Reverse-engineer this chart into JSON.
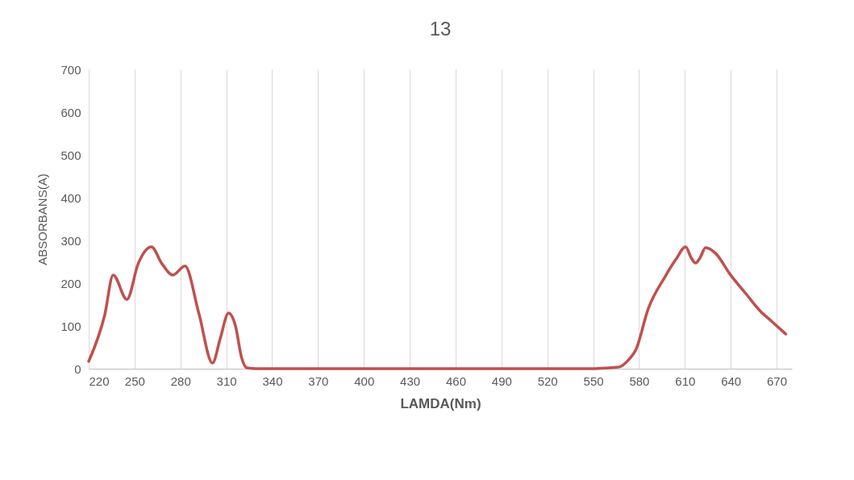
{
  "chart_data": {
    "type": "line",
    "title": "13",
    "xlabel": "LAMDA(Nm)",
    "ylabel": "ABSORBANS(A)",
    "series": [
      {
        "color": "#c0504d",
        "x": [
          220,
          230.5,
          236,
          245,
          252.5,
          261,
          268,
          275,
          283,
          292,
          301,
          306,
          311.5,
          316,
          320,
          323.5,
          330,
          350,
          400,
          450,
          500,
          550,
          560,
          567,
          573,
          578,
          586,
          597,
          604,
          610.5,
          614,
          617,
          620,
          623.5,
          630,
          639.5,
          650,
          659,
          667,
          676
        ],
        "values": [
          17,
          126,
          219,
          162,
          247,
          285,
          245,
          219,
          240,
          130,
          13,
          70,
          130,
          100,
          26,
          2,
          0,
          0,
          0,
          0,
          0,
          0,
          2,
          4,
          20,
          45,
          140,
          215,
          255,
          285,
          260,
          247,
          260,
          283,
          270,
          221,
          175,
          136,
          110,
          81
        ]
      }
    ],
    "xlim": [
      220,
      680
    ],
    "xticks": [
      220,
      250,
      280,
      310,
      340,
      370,
      400,
      430,
      460,
      490,
      520,
      550,
      580,
      610,
      640,
      670
    ],
    "ylim": [
      0,
      700
    ],
    "yticks": [
      0,
      100,
      200,
      300,
      400,
      500,
      600,
      700
    ],
    "grid": "x",
    "line_style": "solid"
  }
}
